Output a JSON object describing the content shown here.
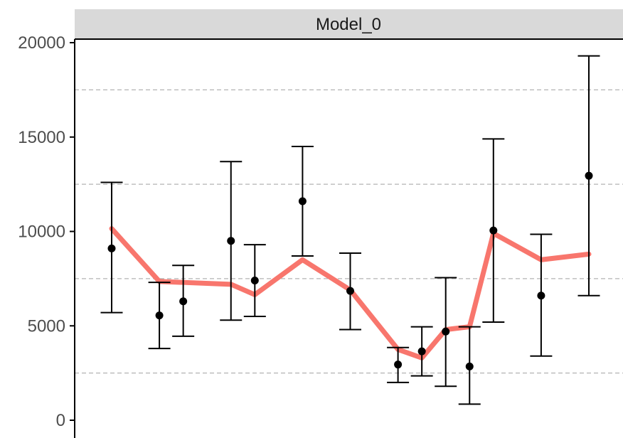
{
  "chart_data": {
    "type": "line",
    "panel_title": "Model_0",
    "xlabel": "",
    "ylabel": "",
    "ylim": [
      0,
      20000
    ],
    "y_ticks": [
      0,
      5000,
      10000,
      15000,
      20000
    ],
    "grid": "dashed horizontal minor lines at 2500, 7500, 12500, 17500",
    "x": [
      1,
      3,
      4,
      6,
      7,
      9,
      11,
      13,
      14,
      15,
      16,
      17,
      19,
      21
    ],
    "series": [
      {
        "kind": "points_with_errorbars",
        "color": "#000000",
        "points": [
          {
            "x": 1,
            "y": 9100,
            "lo": 5700,
            "hi": 12600
          },
          {
            "x": 3,
            "y": 5550,
            "lo": 3800,
            "hi": 7300
          },
          {
            "x": 4,
            "y": 6300,
            "lo": 4450,
            "hi": 8200
          },
          {
            "x": 6,
            "y": 9500,
            "lo": 5300,
            "hi": 13700
          },
          {
            "x": 7,
            "y": 7400,
            "lo": 5500,
            "hi": 9300
          },
          {
            "x": 9,
            "y": 11600,
            "lo": 8700,
            "hi": 14500
          },
          {
            "x": 11,
            "y": 6850,
            "lo": 4800,
            "hi": 8850
          },
          {
            "x": 13,
            "y": 2950,
            "lo": 2000,
            "hi": 3850
          },
          {
            "x": 14,
            "y": 3650,
            "lo": 2350,
            "hi": 4950
          },
          {
            "x": 15,
            "y": 4700,
            "lo": 1800,
            "hi": 7550
          },
          {
            "x": 16,
            "y": 2850,
            "lo": 850,
            "hi": 4950
          },
          {
            "x": 17,
            "y": 10050,
            "lo": 5200,
            "hi": 14900
          },
          {
            "x": 19,
            "y": 6600,
            "lo": 3400,
            "hi": 9850
          },
          {
            "x": 21,
            "y": 12950,
            "lo": 6600,
            "hi": 19300
          }
        ]
      },
      {
        "kind": "line",
        "color": "#f8766d",
        "values": [
          10150,
          7350,
          7300,
          7200,
          6650,
          8500,
          6900,
          3750,
          3300,
          4800,
          4950,
          9900,
          8500,
          8800
        ]
      }
    ]
  }
}
